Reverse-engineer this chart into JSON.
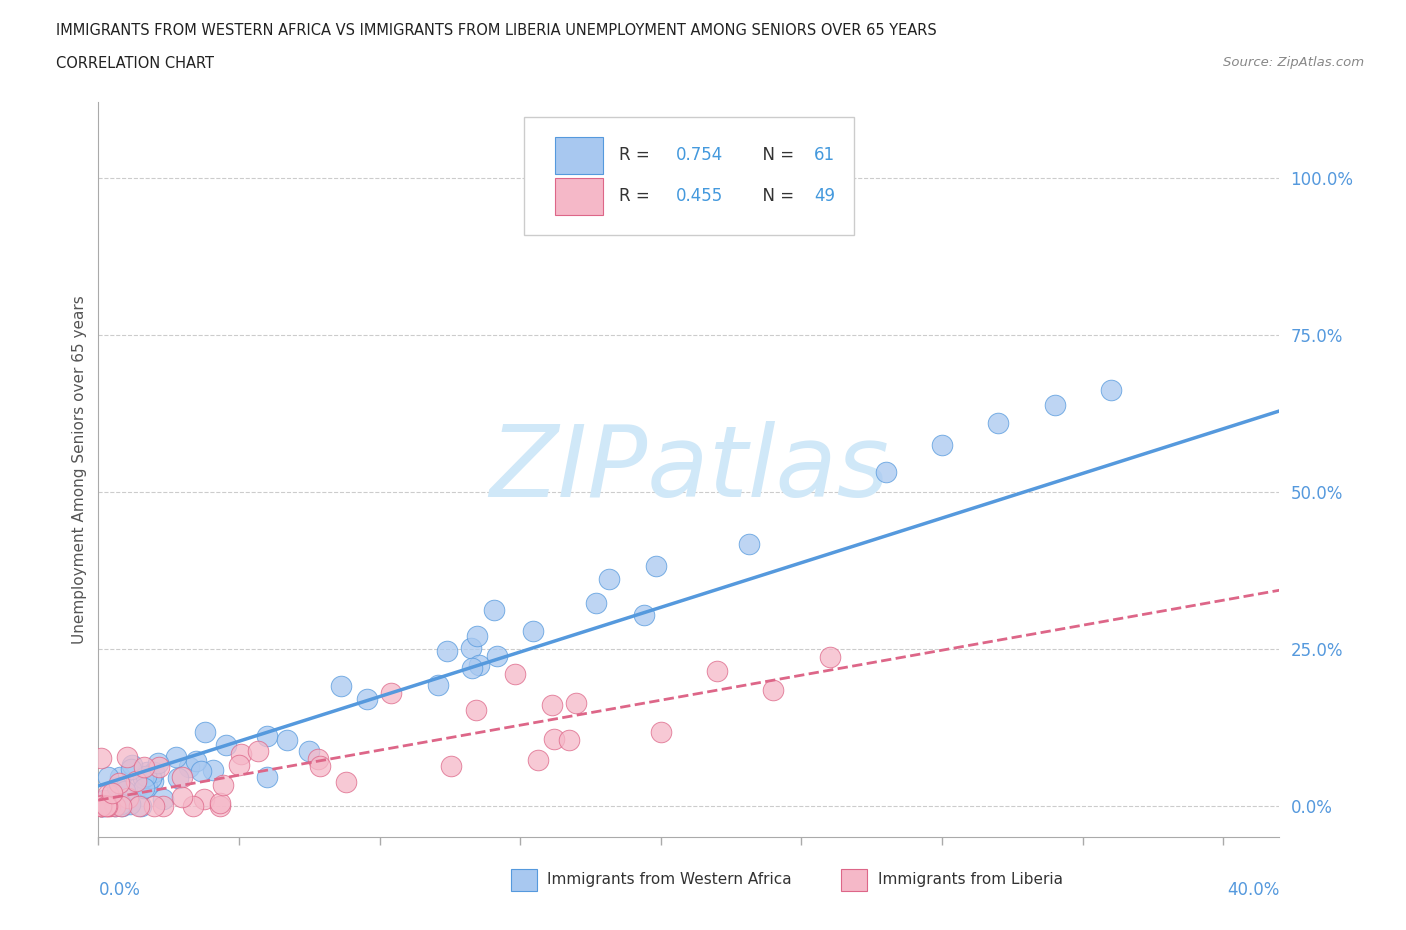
{
  "title_line1": "IMMIGRANTS FROM WESTERN AFRICA VS IMMIGRANTS FROM LIBERIA UNEMPLOYMENT AMONG SENIORS OVER 65 YEARS",
  "title_line2": "CORRELATION CHART",
  "source_text": "Source: ZipAtlas.com",
  "ylabel": "Unemployment Among Seniors over 65 years",
  "yticks_labels": [
    "0.0%",
    "25.0%",
    "50.0%",
    "75.0%",
    "100.0%"
  ],
  "ytick_values": [
    0.0,
    0.25,
    0.5,
    0.75,
    1.0
  ],
  "xlim": [
    0.0,
    0.42
  ],
  "ylim": [
    -0.05,
    1.12
  ],
  "color_blue_fill": "#a8c8f0",
  "color_blue_edge": "#5599dd",
  "color_pink_fill": "#f5b8c8",
  "color_pink_edge": "#dd6688",
  "color_blue_text": "#4499dd",
  "color_axis_text": "#5599dd",
  "color_grid": "#cccccc",
  "watermark": "ZIPatlas",
  "watermark_color": "#d0e8f8",
  "background_color": "#ffffff",
  "legend_r1": "0.754",
  "legend_n1": "61",
  "legend_r2": "0.455",
  "legend_n2": "49",
  "blue_line_slope": 1.875,
  "blue_line_intercept": 0.0,
  "pink_line_slope": 0.85,
  "pink_line_intercept": 0.0
}
